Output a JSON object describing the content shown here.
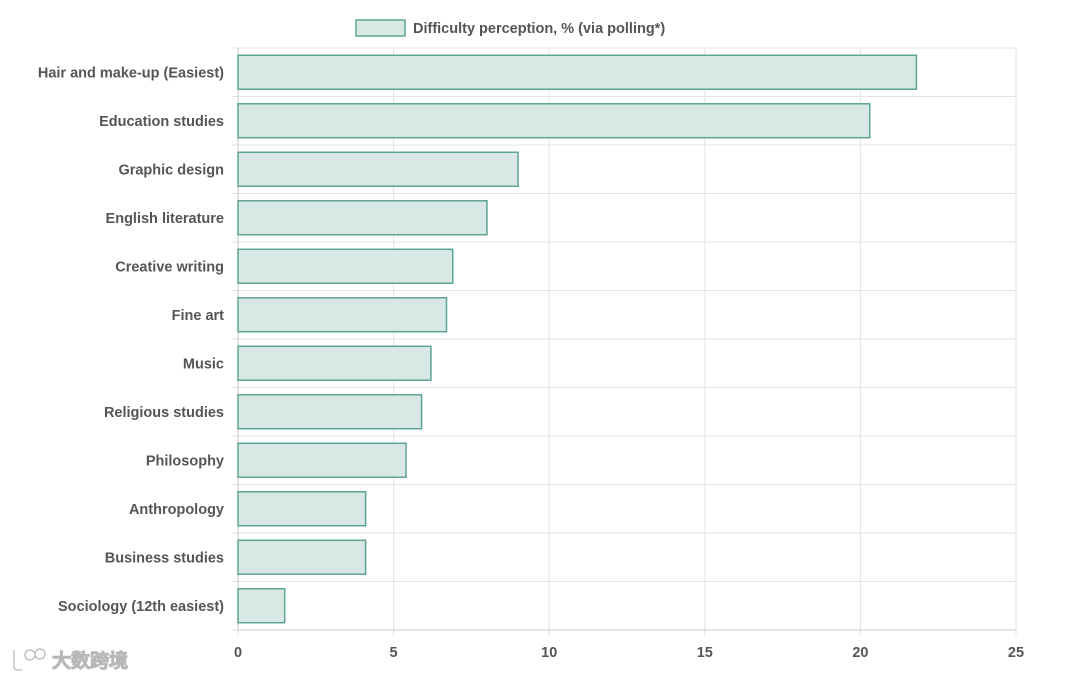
{
  "chart_data": {
    "type": "bar",
    "orientation": "horizontal",
    "title": "",
    "legend": {
      "label": "Difficulty perception, % (via polling*)",
      "position": "top-center"
    },
    "categories": [
      "Hair and make-up (Easiest)",
      "Education studies",
      "Graphic design",
      "English literature",
      "Creative writing",
      "Fine art",
      "Music",
      "Religious studies",
      "Philosophy",
      "Anthropology",
      "Business studies",
      "Sociology (12th easiest)"
    ],
    "values": [
      21.8,
      20.3,
      9.0,
      8.0,
      6.9,
      6.7,
      6.2,
      5.9,
      5.4,
      4.1,
      4.1,
      1.5
    ],
    "xlim": [
      0,
      25
    ],
    "xticks": [
      "0",
      "5",
      "10",
      "15",
      "20",
      "25"
    ],
    "xlabel": "",
    "ylabel": "",
    "grid": true,
    "colors": {
      "bar_fill": "#d8e8e5",
      "bar_stroke": "#5fa394",
      "grid": "#e3e3e3",
      "axis": "#c8c8c8",
      "text": "#555555"
    }
  },
  "watermark": {
    "text": "大数跨境",
    "icon": "logo-mark-icon"
  }
}
